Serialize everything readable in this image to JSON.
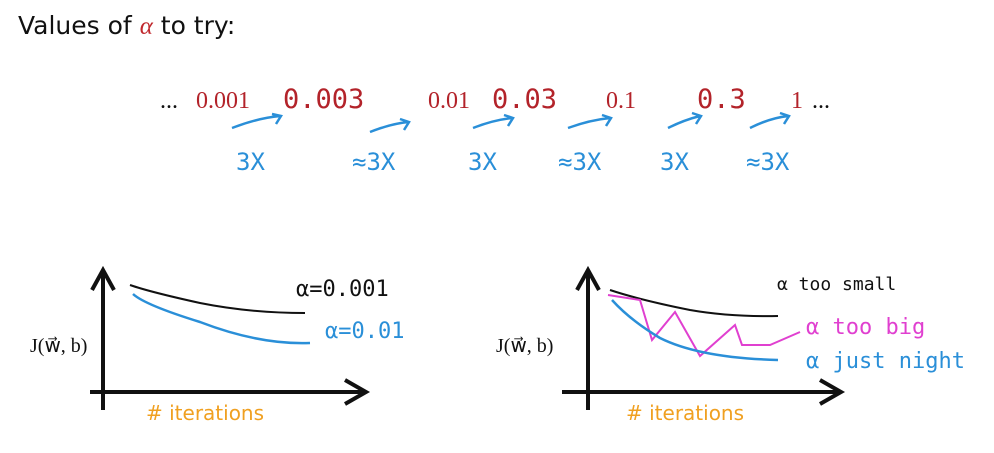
{
  "title": {
    "before": "Values of",
    "symbol": "α",
    "after": "to try:"
  },
  "sequence": {
    "items": [
      "...",
      "0.001",
      "0.003",
      "0.01",
      "0.03",
      "0.1",
      "0.3",
      "1",
      "..."
    ],
    "multipliers": [
      "3X",
      "≈3X",
      "3X",
      "≈3X",
      "3X",
      "≈3X"
    ]
  },
  "plots": [
    {
      "y_label": "J(w⃗, b)",
      "x_label": "# iterations",
      "curve_labels": [
        "α=0.001",
        "α=0.01"
      ]
    },
    {
      "y_label": "J(w⃗, b)",
      "x_label": "# iterations",
      "curve_labels": [
        "α too small",
        "α too big",
        "α just night"
      ]
    }
  ]
}
